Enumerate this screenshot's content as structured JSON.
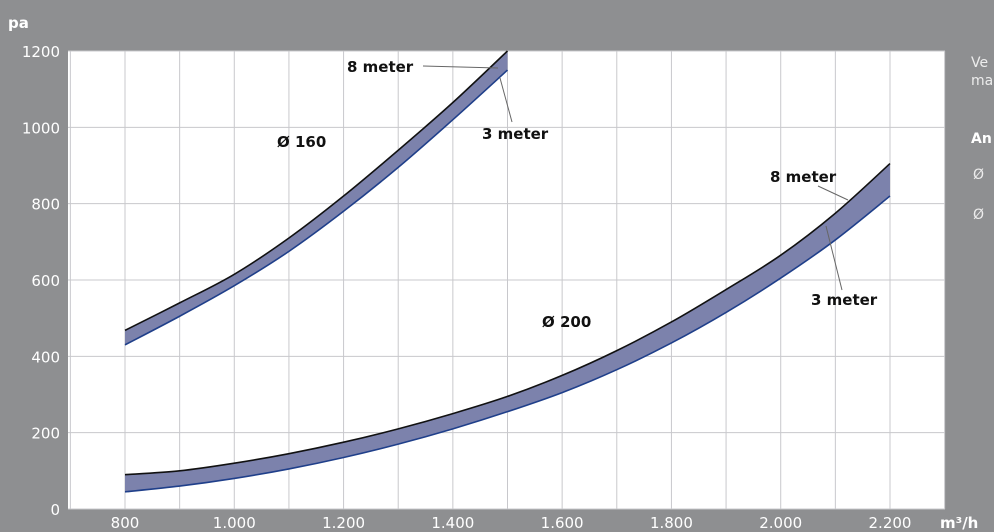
{
  "chart_data": {
    "type": "area",
    "y_unit": "pa",
    "x_unit": "m³/h",
    "xlim": [
      800,
      2200
    ],
    "ylim": [
      0,
      1200
    ],
    "x_ticks": [
      800,
      1000,
      1200,
      1400,
      1600,
      1800,
      2000,
      2200
    ],
    "x_tick_labels": [
      "800",
      "1.000",
      "1.200",
      "1.400",
      "1.600",
      "1.800",
      "2.000",
      "2.200"
    ],
    "y_ticks": [
      0,
      200,
      400,
      600,
      800,
      1000,
      1200
    ],
    "y_tick_labels": [
      "0",
      "200",
      "400",
      "600",
      "800",
      "1000",
      "1200"
    ],
    "grid": true,
    "series": [
      {
        "name": "Ø 160",
        "x": [
          800,
          900,
          1000,
          1100,
          1200,
          1300,
          1400,
          1500
        ],
        "upper_8_meter": [
          468,
          540,
          615,
          710,
          820,
          940,
          1065,
          1200
        ],
        "lower_3_meter": [
          430,
          505,
          585,
          675,
          780,
          895,
          1020,
          1150
        ]
      },
      {
        "name": "Ø 200",
        "x": [
          800,
          900,
          1000,
          1100,
          1200,
          1300,
          1400,
          1500,
          1600,
          1700,
          1800,
          1900,
          2000,
          2100,
          2200
        ],
        "upper_8_meter": [
          90,
          100,
          120,
          145,
          175,
          210,
          250,
          295,
          350,
          415,
          490,
          575,
          665,
          775,
          905
        ],
        "lower_3_meter": [
          45,
          60,
          80,
          105,
          135,
          170,
          210,
          255,
          305,
          365,
          435,
          515,
          605,
          705,
          820
        ]
      }
    ],
    "annotations": [
      {
        "text": "Ø 160"
      },
      {
        "text": "8 meter"
      },
      {
        "text": "3 meter"
      },
      {
        "text": "Ø 200"
      },
      {
        "text": "8 meter"
      },
      {
        "text": "3 meter"
      }
    ],
    "colors": {
      "background": "#8e8f91",
      "plot": "#ffffff",
      "grid": "#c8c8cc",
      "band": "#7c82ac"
    }
  },
  "side_text": {
    "line1": "Ve",
    "line2": "ma",
    "heading": "An",
    "item1": "Ø",
    "item2": "Ø"
  }
}
